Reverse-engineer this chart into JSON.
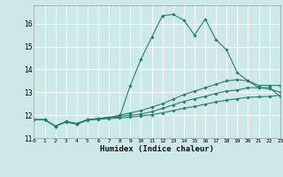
{
  "background_color": "#cde8e8",
  "grid_color": "#ffffff",
  "line_color": "#2a7d6e",
  "xlabel": "Humidex (Indice chaleur)",
  "xlim": [
    0,
    23
  ],
  "ylim": [
    11,
    16.8
  ],
  "yticks": [
    11,
    12,
    13,
    14,
    15,
    16
  ],
  "xtick_labels": [
    "0",
    "1",
    "2",
    "3",
    "4",
    "5",
    "6",
    "7",
    "8",
    "9",
    "10",
    "11",
    "12",
    "13",
    "14",
    "15",
    "16",
    "17",
    "18",
    "19",
    "20",
    "21",
    "22",
    "23"
  ],
  "series": [
    {
      "x": [
        0,
        1,
        2,
        3,
        4,
        5,
        6,
        7,
        8,
        9,
        10,
        11,
        12,
        13,
        14,
        15,
        16,
        17,
        18,
        19,
        20,
        21,
        22,
        23
      ],
      "y": [
        11.8,
        11.8,
        11.52,
        11.72,
        11.63,
        11.8,
        11.85,
        11.9,
        11.92,
        13.3,
        14.45,
        15.4,
        16.35,
        16.4,
        16.15,
        15.5,
        16.2,
        15.3,
        14.85,
        13.85,
        13.5,
        13.2,
        13.2,
        12.82
      ]
    },
    {
      "x": [
        0,
        1,
        2,
        3,
        4,
        5,
        6,
        7,
        8,
        9,
        10,
        11,
        12,
        13,
        14,
        15,
        16,
        17,
        18,
        19,
        20,
        21,
        22,
        23
      ],
      "y": [
        11.8,
        11.8,
        11.52,
        11.72,
        11.63,
        11.8,
        11.85,
        11.9,
        12.0,
        12.1,
        12.2,
        12.35,
        12.5,
        12.7,
        12.9,
        13.05,
        13.2,
        13.35,
        13.5,
        13.55,
        13.5,
        13.3,
        13.3,
        13.3
      ]
    },
    {
      "x": [
        0,
        1,
        2,
        3,
        4,
        5,
        6,
        7,
        8,
        9,
        10,
        11,
        12,
        13,
        14,
        15,
        16,
        17,
        18,
        19,
        20,
        21,
        22,
        23
      ],
      "y": [
        11.8,
        11.8,
        11.52,
        11.72,
        11.63,
        11.8,
        11.85,
        11.9,
        11.95,
        12.0,
        12.05,
        12.15,
        12.3,
        12.45,
        12.6,
        12.72,
        12.82,
        12.95,
        13.05,
        13.1,
        13.2,
        13.2,
        13.15,
        13.0
      ]
    },
    {
      "x": [
        0,
        1,
        2,
        3,
        4,
        5,
        6,
        7,
        8,
        9,
        10,
        11,
        12,
        13,
        14,
        15,
        16,
        17,
        18,
        19,
        20,
        21,
        22,
        23
      ],
      "y": [
        11.8,
        11.8,
        11.52,
        11.7,
        11.6,
        11.78,
        11.82,
        11.85,
        11.88,
        11.92,
        11.97,
        12.02,
        12.1,
        12.2,
        12.3,
        12.38,
        12.48,
        12.58,
        12.65,
        12.72,
        12.78,
        12.8,
        12.82,
        12.87
      ]
    }
  ]
}
